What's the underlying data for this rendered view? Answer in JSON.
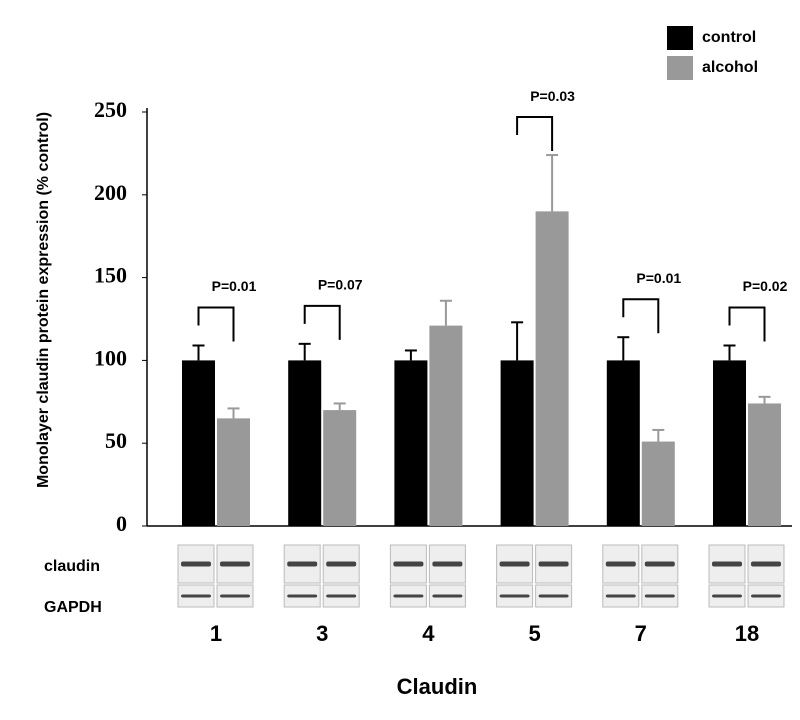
{
  "chart_data": {
    "type": "bar",
    "x_label": "Claudin",
    "y_label": "Monolayer claudin protein expression (% control)",
    "categories": [
      "1",
      "3",
      "4",
      "5",
      "7",
      "18"
    ],
    "series": [
      {
        "name": "control",
        "color": "#000000",
        "values": [
          100,
          100,
          100,
          100,
          100,
          100
        ],
        "errors": [
          9,
          10,
          6,
          23,
          14,
          9
        ]
      },
      {
        "name": "alcohol",
        "color": "#999999",
        "values": [
          65,
          70,
          121,
          190,
          51,
          74
        ],
        "errors": [
          6,
          4,
          15,
          34,
          7,
          4
        ]
      }
    ],
    "p_values": [
      "P=0.01",
      "P=0.07",
      null,
      "P=0.03",
      "P=0.01",
      "P=0.02"
    ],
    "blot_labels": [
      "claudin",
      "GAPDH"
    ],
    "ylim": [
      0,
      250
    ],
    "yticks": [
      0,
      50,
      100,
      150,
      200,
      250
    ],
    "legend": "top-right"
  }
}
